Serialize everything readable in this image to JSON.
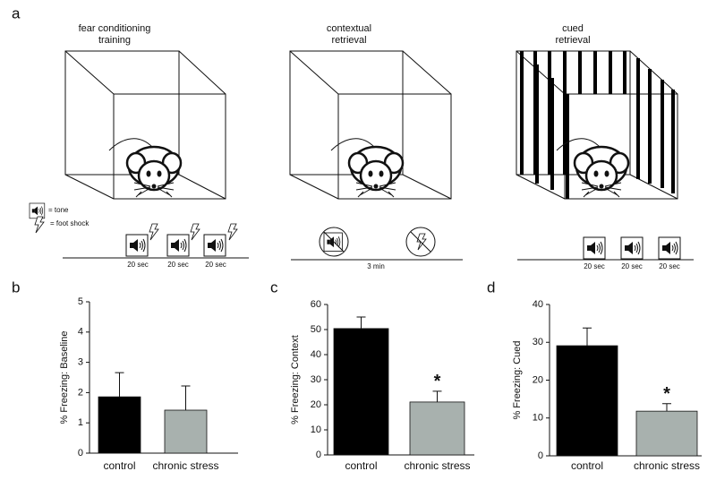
{
  "panel_a": {
    "label": "a",
    "titles": [
      [
        "fear conditioning",
        "training"
      ],
      [
        "contextual",
        "retrieval"
      ],
      [
        "cued",
        "retrieval"
      ]
    ],
    "legend": {
      "tone": "= tone",
      "shock": "= foot shock"
    },
    "training_durations": [
      "20 sec",
      "20 sec",
      "20 sec"
    ],
    "context_duration": "3 min",
    "cued_durations": [
      "20 sec",
      "20 sec",
      "20 sec"
    ]
  },
  "chart_data": [
    {
      "type": "bar",
      "panel": "b",
      "y_label": "% Freezing: Baseline",
      "categories": [
        "control",
        "chronic stress"
      ],
      "values": [
        1.86,
        1.42
      ],
      "errors": [
        0.8,
        0.8
      ],
      "colors": [
        "#000000",
        "#a8b1ae"
      ],
      "ylim": [
        0,
        5
      ],
      "yticks": [
        0,
        1,
        2,
        3,
        4,
        5
      ]
    },
    {
      "type": "bar",
      "panel": "c",
      "y_label": "% Freezing: Context",
      "categories": [
        "control",
        "chronic stress"
      ],
      "values": [
        50.4,
        21.1
      ],
      "errors": [
        4.6,
        4.3
      ],
      "colors": [
        "#000000",
        "#a8b1ae"
      ],
      "ylim": [
        0,
        60
      ],
      "yticks": [
        0,
        10,
        20,
        30,
        40,
        50,
        60
      ],
      "annotation": "*"
    },
    {
      "type": "bar",
      "panel": "d",
      "y_label": "% Freezing: Cued",
      "categories": [
        "control",
        "chronic stress"
      ],
      "values": [
        29.1,
        11.8
      ],
      "errors": [
        4.7,
        2.0
      ],
      "colors": [
        "#000000",
        "#a8b1ae"
      ],
      "ylim": [
        0,
        40
      ],
      "yticks": [
        0,
        10,
        20,
        30,
        40
      ],
      "annotation": "*"
    }
  ]
}
